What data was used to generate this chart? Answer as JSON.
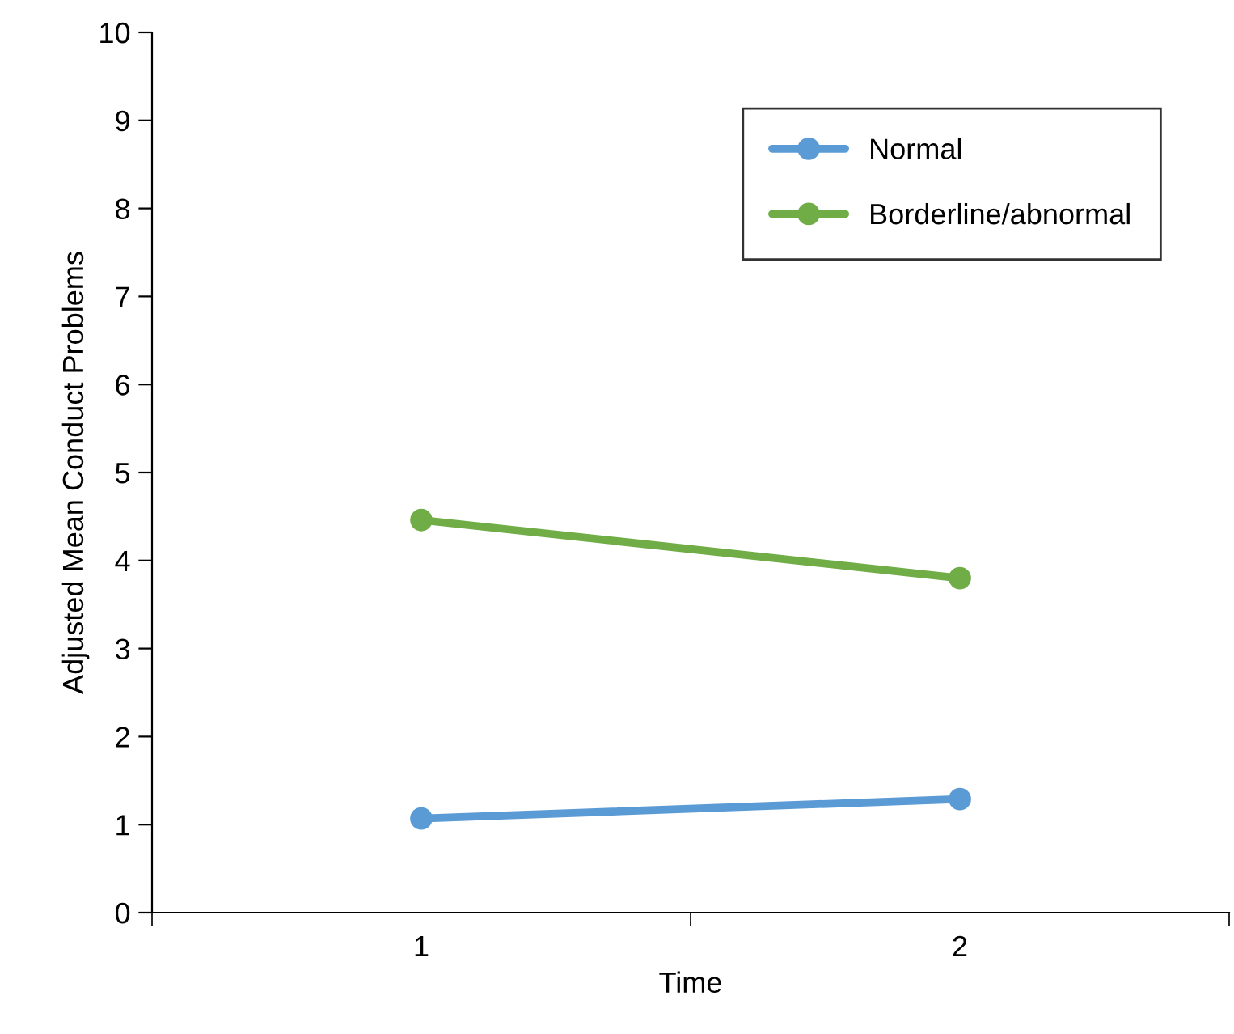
{
  "chart_data": {
    "type": "line",
    "xlabel": "Time",
    "ylabel": "Adjusted Mean Conduct Problems",
    "x": [
      1,
      2
    ],
    "series": [
      {
        "name": "Normal",
        "color": "#5b9bd5",
        "values": [
          1.07,
          1.29
        ]
      },
      {
        "name": "Borderline/abnormal",
        "color": "#70ad47",
        "values": [
          4.46,
          3.8
        ]
      }
    ],
    "xlim": [
      0.5,
      2.5
    ],
    "xticks": [
      {
        "value": 0.5,
        "label": null
      },
      1,
      {
        "value": 1.5,
        "label": null
      },
      2,
      {
        "value": 2.5,
        "label": null
      }
    ],
    "ylim": [
      0,
      10
    ],
    "yticks": [
      0,
      1,
      2,
      3,
      4,
      5,
      6,
      7,
      8,
      9,
      10
    ],
    "marker": "circle",
    "line_style": "solid",
    "legend": "top right",
    "grid": false
  }
}
